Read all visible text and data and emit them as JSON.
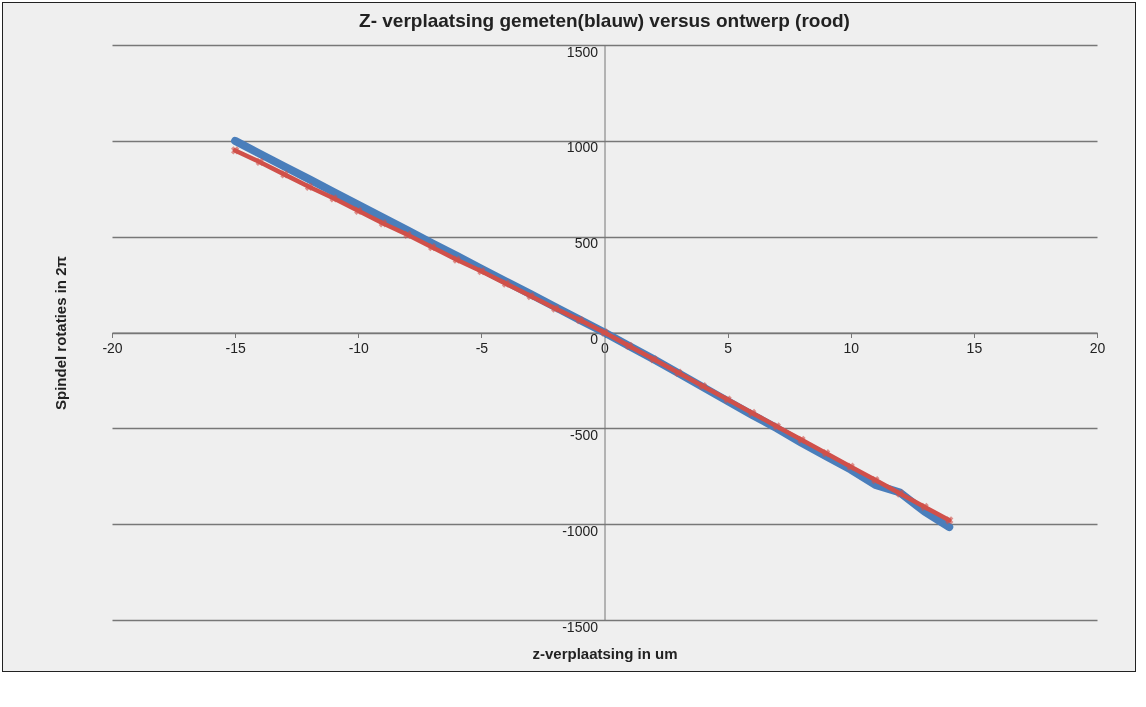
{
  "chart_data": {
    "type": "line",
    "title": "Z- verplaatsing gemeten(blauw) versus ontwerp (rood)",
    "xlabel": "z-verplaatsing in um",
    "ylabel": "Spindel rotaties in 2π",
    "xlim": [
      -20,
      20
    ],
    "xticks": [
      -20,
      -15,
      -10,
      -5,
      0,
      5,
      10,
      15,
      20
    ],
    "ylim": [
      -1500,
      1500
    ],
    "yticks": [
      -1500,
      -1000,
      -500,
      0,
      500,
      1000,
      1500
    ],
    "grid": "y",
    "line_style": "solid",
    "x": [
      -15,
      -14,
      -13,
      -12,
      -11,
      -10,
      -9,
      -8,
      -7,
      -6,
      -5,
      -4,
      -3,
      -2,
      -1,
      0,
      1,
      2,
      3,
      4,
      5,
      6,
      7,
      8,
      9,
      10,
      11,
      12,
      13,
      14
    ],
    "series": [
      {
        "color": "#4a7ebb",
        "marker": "none",
        "values": [
          1000,
          933,
          866,
          800,
          733,
          666,
          600,
          533,
          466,
          400,
          333,
          266,
          200,
          133,
          66,
          0,
          -70,
          -140,
          -212,
          -285,
          -358,
          -430,
          -500,
          -575,
          -645,
          -715,
          -795,
          -835,
          -935,
          -1015
        ]
      },
      {
        "color": "#d0504a",
        "marker": "cross",
        "values": [
          950,
          890,
          825,
          760,
          700,
          635,
          570,
          510,
          445,
          380,
          320,
          255,
          190,
          125,
          65,
          0,
          -70,
          -140,
          -210,
          -280,
          -350,
          -420,
          -490,
          -560,
          -630,
          -700,
          -770,
          -840,
          -910,
          -980
        ]
      }
    ]
  }
}
